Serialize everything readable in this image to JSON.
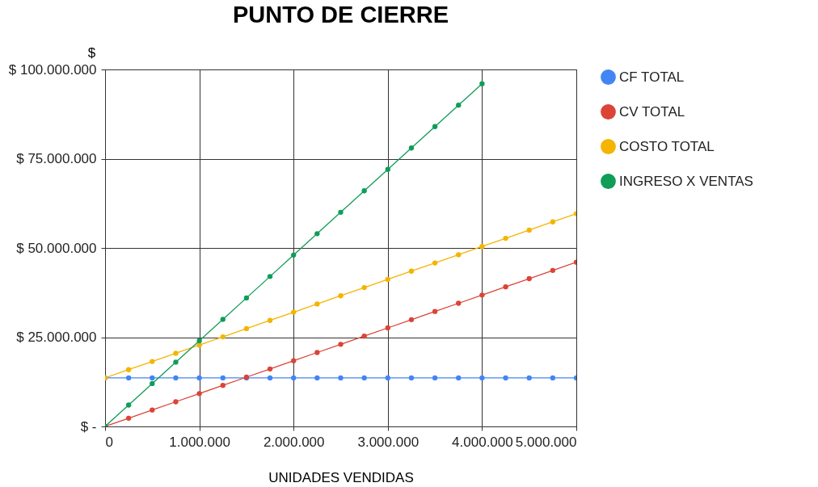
{
  "chart_data": {
    "type": "line",
    "title": "PUNTO DE CIERRE",
    "xlabel": "UNIDADES VENDIDAS",
    "ylabel": "$",
    "x": [
      0,
      250000,
      500000,
      750000,
      1000000,
      1250000,
      1500000,
      1750000,
      2000000,
      2250000,
      2500000,
      2750000,
      3000000,
      3250000,
      3500000,
      3750000,
      4000000,
      4250000,
      4500000,
      4750000,
      5000000
    ],
    "series": [
      {
        "name": "CF TOTAL",
        "color": "#4285f4",
        "values": [
          13600000,
          13600000,
          13600000,
          13600000,
          13600000,
          13600000,
          13600000,
          13600000,
          13600000,
          13600000,
          13600000,
          13600000,
          13600000,
          13600000,
          13600000,
          13600000,
          13600000,
          13600000,
          13600000,
          13600000,
          13600000
        ]
      },
      {
        "name": "CV TOTAL",
        "color": "#db4437",
        "values": [
          0,
          2300000,
          4600000,
          6900000,
          9200000,
          11500000,
          13800000,
          16100000,
          18400000,
          20700000,
          23000000,
          25300000,
          27600000,
          29900000,
          32200000,
          34500000,
          36800000,
          39100000,
          41400000,
          43700000,
          46000000
        ]
      },
      {
        "name": "COSTO TOTAL",
        "color": "#f4b400",
        "values": [
          13600000,
          15900000,
          18200000,
          20500000,
          22800000,
          25100000,
          27400000,
          29700000,
          32000000,
          34300000,
          36600000,
          38900000,
          41200000,
          43500000,
          45800000,
          48100000,
          50400000,
          52700000,
          55000000,
          57300000,
          59600000
        ]
      },
      {
        "name": "INGRESO X VENTAS",
        "color": "#0f9d58",
        "values": [
          0,
          6000000,
          12000000,
          18000000,
          24000000,
          30000000,
          36000000,
          42000000,
          48000000,
          54000000,
          60000000,
          66000000,
          72000000,
          78000000,
          84000000,
          90000000,
          96000000,
          null,
          null,
          null,
          null
        ]
      }
    ],
    "xlim": [
      0,
      5000000
    ],
    "xticks": [
      0,
      {
        "value": 1000000,
        "label": "1.000.000"
      },
      {
        "value": 2000000,
        "label": "2.000.000"
      },
      {
        "value": 3000000,
        "label": "3.000.000"
      },
      {
        "value": 4000000,
        "label": "4.000.000"
      },
      {
        "value": 5000000,
        "label": "5.000.000"
      }
    ],
    "ylim": [
      0,
      100000000
    ],
    "yticks": [
      {
        "value": 0,
        "label": "$ -"
      },
      {
        "value": 25000000,
        "label": "$ 25.000.000"
      },
      {
        "value": 50000000,
        "label": "$ 50.000.000"
      },
      {
        "value": 75000000,
        "label": "$ 75.000.000"
      },
      {
        "value": 100000000,
        "label": "$ 100.000.000"
      }
    ],
    "grid": true,
    "legend": "right",
    "marker": "circle",
    "line_style": "solid"
  }
}
